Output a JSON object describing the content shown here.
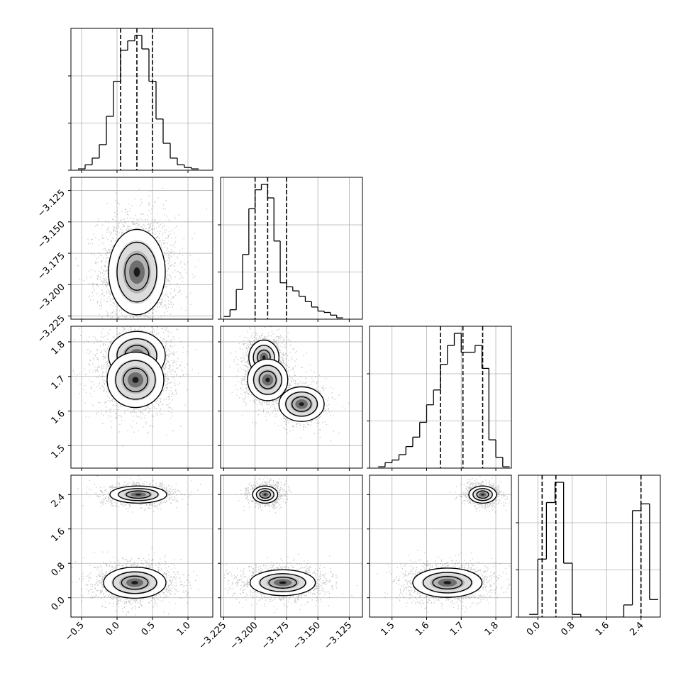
{
  "chart_data": {
    "type": "corner",
    "title": "",
    "grid": true,
    "colors": {
      "line": "#000000",
      "grid": "#b0b0b0",
      "scatter": "#000000",
      "background": "#ffffff"
    },
    "parameters": [
      {
        "index": 0,
        "axis_label": "",
        "range": [
          -0.65,
          1.35
        ],
        "ticks": [
          -0.5,
          0.0,
          0.5,
          1.0
        ],
        "tick_labels": [
          "−0.5",
          "0.0",
          "0.5",
          "1.0"
        ]
      },
      {
        "index": 1,
        "axis_label": "",
        "range": [
          -3.2275,
          -3.1145
        ],
        "ticks": [
          -3.225,
          -3.2,
          -3.175,
          -3.15,
          -3.125
        ],
        "tick_labels": [
          "−3.225",
          "−3.200",
          "−3.175",
          "−3.150",
          "−3.125"
        ]
      },
      {
        "index": 2,
        "axis_label": "",
        "range": [
          1.435,
          1.845
        ],
        "ticks": [
          1.5,
          1.6,
          1.7,
          1.8
        ],
        "tick_labels": [
          "1.5",
          "1.6",
          "1.7",
          "1.8"
        ]
      },
      {
        "index": 3,
        "axis_label": "",
        "range": [
          -0.45,
          2.85
        ],
        "ticks": [
          0.0,
          0.8,
          1.6,
          2.4
        ],
        "tick_labels": [
          "0.0",
          "0.8",
          "1.6",
          "2.4"
        ]
      }
    ],
    "histograms": [
      {
        "param": 0,
        "quantiles": [
          0.05,
          0.28,
          0.5
        ],
        "bins": [
          -0.55,
          -0.45,
          -0.35,
          -0.25,
          -0.15,
          -0.05,
          0.05,
          0.15,
          0.25,
          0.35,
          0.45,
          0.55,
          0.65,
          0.75,
          0.85,
          0.95,
          1.05,
          1.15
        ],
        "counts": [
          0.01,
          0.04,
          0.09,
          0.19,
          0.4,
          0.66,
          0.89,
          0.96,
          1.0,
          0.9,
          0.66,
          0.38,
          0.2,
          0.09,
          0.04,
          0.02,
          0.01
        ]
      },
      {
        "param": 1,
        "quantiles": [
          -3.2,
          -3.19,
          -3.175
        ],
        "bins": [
          -3.225,
          -3.22,
          -3.215,
          -3.21,
          -3.205,
          -3.2,
          -3.195,
          -3.19,
          -3.185,
          -3.18,
          -3.175,
          -3.17,
          -3.165,
          -3.16,
          -3.155,
          -3.15,
          -3.145,
          -3.14,
          -3.135,
          -3.13
        ],
        "counts": [
          0.02,
          0.07,
          0.22,
          0.48,
          0.82,
          0.96,
          1.0,
          0.9,
          0.58,
          0.27,
          0.24,
          0.21,
          0.17,
          0.13,
          0.09,
          0.06,
          0.05,
          0.03,
          0.01
        ]
      },
      {
        "param": 2,
        "quantiles": [
          1.64,
          1.705,
          1.762
        ],
        "bins": [
          1.46,
          1.48,
          1.5,
          1.52,
          1.54,
          1.56,
          1.58,
          1.6,
          1.62,
          1.64,
          1.66,
          1.68,
          1.7,
          1.72,
          1.74,
          1.76,
          1.78,
          1.8,
          1.82,
          1.84
        ],
        "counts": [
          0.01,
          0.04,
          0.06,
          0.1,
          0.16,
          0.23,
          0.34,
          0.47,
          0.58,
          0.77,
          0.91,
          1.0,
          0.86,
          0.86,
          0.91,
          0.74,
          0.21,
          0.08,
          0.01
        ]
      },
      {
        "param": 3,
        "quantiles": [
          0.1,
          0.42,
          2.4
        ],
        "bins": [
          -0.2,
          0.0,
          0.2,
          0.4,
          0.6,
          0.8,
          1.0,
          1.2,
          1.4,
          1.6,
          1.8,
          2.0,
          2.2,
          2.4,
          2.6,
          2.8
        ],
        "counts": [
          0.02,
          0.43,
          0.85,
          1.0,
          0.4,
          0.02,
          0.0,
          0.0,
          0.0,
          0.0,
          0.0,
          0.09,
          0.79,
          0.84,
          0.13
        ]
      }
    ],
    "joint": [
      {
        "x": 0,
        "y": 1,
        "modes": [
          {
            "mean": [
              0.28,
              -3.19
            ],
            "sd": [
              0.2,
              0.017
            ],
            "weight": 1.0
          }
        ]
      },
      {
        "x": 0,
        "y": 2,
        "modes": [
          {
            "mean": [
              0.28,
              1.76
            ],
            "sd": [
              0.2,
              0.035
            ],
            "weight": 0.45
          },
          {
            "mean": [
              0.26,
              1.69
            ],
            "sd": [
              0.2,
              0.04
            ],
            "weight": 0.55
          }
        ]
      },
      {
        "x": 1,
        "y": 2,
        "modes": [
          {
            "mean": [
              -3.193,
              1.755
            ],
            "sd": [
              0.006,
              0.025
            ],
            "weight": 0.4
          },
          {
            "mean": [
              -3.19,
              1.69
            ],
            "sd": [
              0.008,
              0.03
            ],
            "weight": 0.35
          },
          {
            "mean": [
              -3.163,
              1.62
            ],
            "sd": [
              0.009,
              0.025
            ],
            "weight": 0.25
          }
        ]
      },
      {
        "x": 0,
        "y": 3,
        "modes": [
          {
            "mean": [
              0.3,
              2.4
            ],
            "sd": [
              0.2,
              0.1
            ],
            "weight": 0.38
          },
          {
            "mean": [
              0.25,
              0.35
            ],
            "sd": [
              0.22,
              0.18
            ],
            "weight": 0.62
          }
        ]
      },
      {
        "x": 1,
        "y": 3,
        "modes": [
          {
            "mean": [
              -3.192,
              2.4
            ],
            "sd": [
              0.005,
              0.1
            ],
            "weight": 0.38
          },
          {
            "mean": [
              -3.178,
              0.35
            ],
            "sd": [
              0.013,
              0.15
            ],
            "weight": 0.62
          }
        ]
      },
      {
        "x": 2,
        "y": 3,
        "modes": [
          {
            "mean": [
              1.762,
              2.4
            ],
            "sd": [
              0.02,
              0.1
            ],
            "weight": 0.38
          },
          {
            "mean": [
              1.66,
              0.35
            ],
            "sd": [
              0.05,
              0.17
            ],
            "weight": 0.62
          }
        ]
      }
    ]
  }
}
